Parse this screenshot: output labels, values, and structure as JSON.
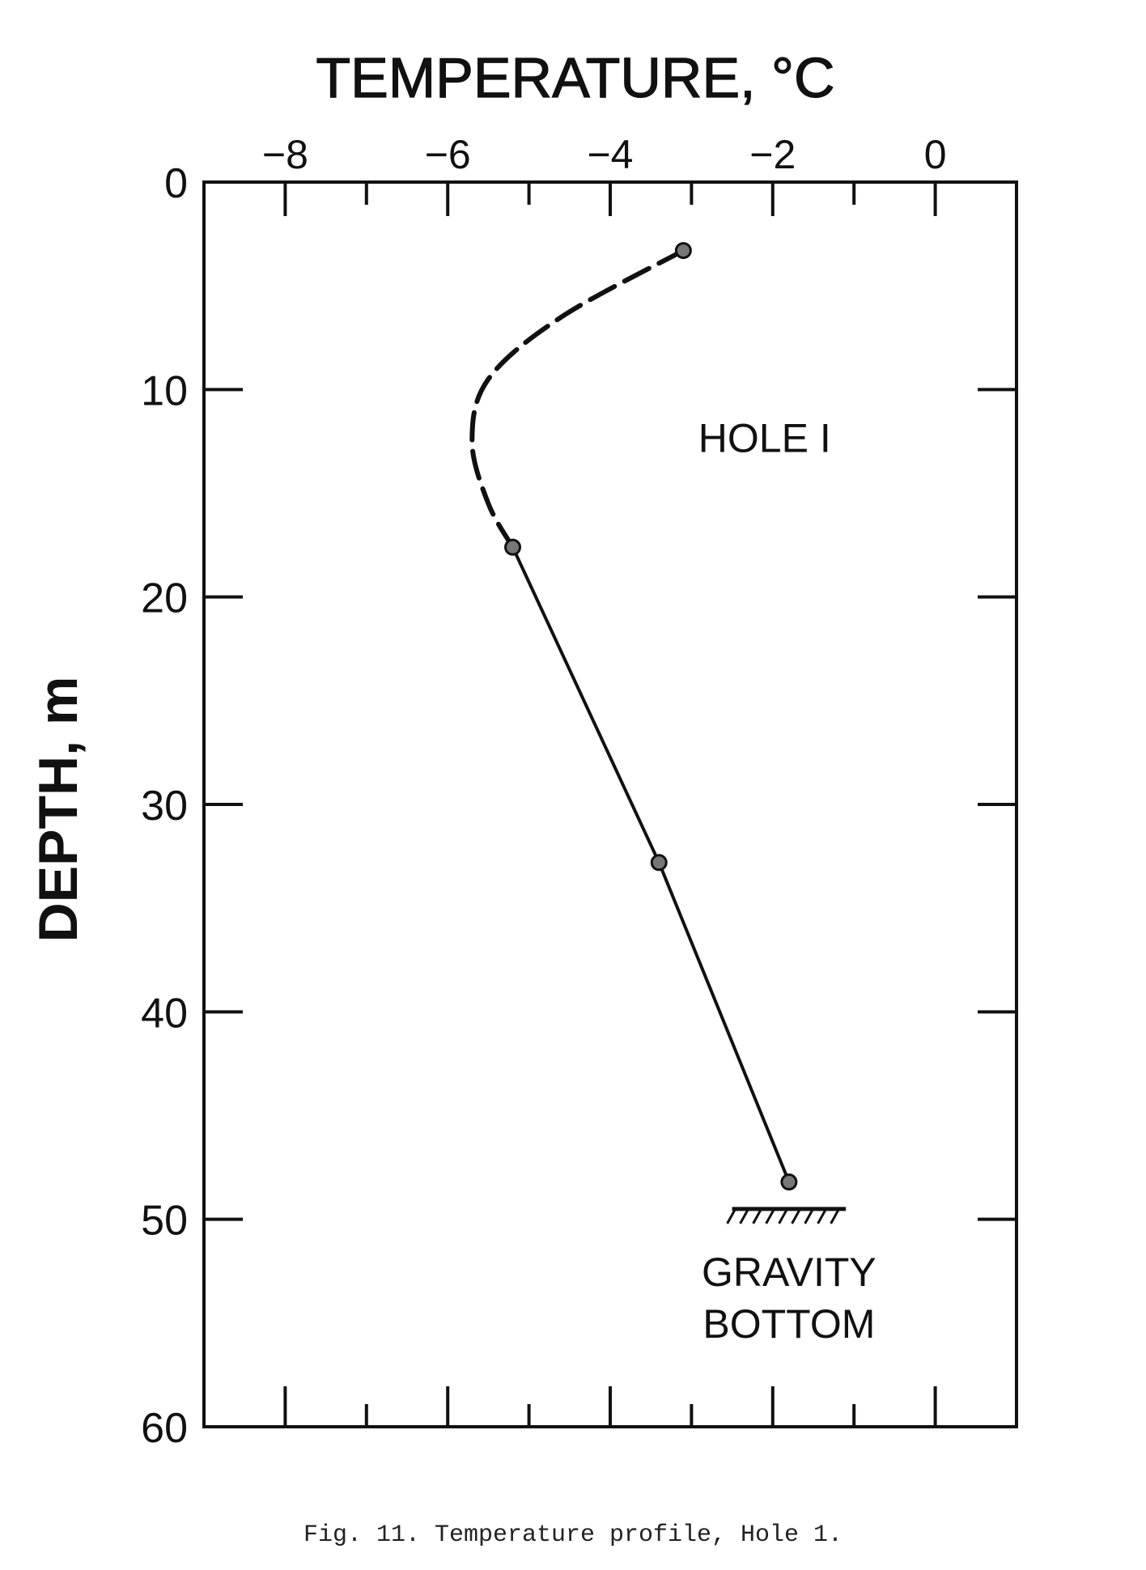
{
  "caption": "Fig. 11.  Temperature profile, Hole 1.",
  "chart_data": {
    "type": "line",
    "x_axis_label": "TEMPERATURE, °C",
    "y_axis_label": "DEPTH, m",
    "xlim": [
      -9,
      1
    ],
    "ylim": [
      0,
      60
    ],
    "y_inverted": true,
    "x_axis_position": "top",
    "x_ticks": [
      -8,
      -6,
      -4,
      -2,
      0
    ],
    "x_tick_labels": [
      "−8",
      "−6",
      "−4",
      "−2",
      "0"
    ],
    "y_ticks": [
      0,
      10,
      20,
      30,
      40,
      50,
      60
    ],
    "y_tick_labels": [
      "0",
      "10",
      "20",
      "30",
      "40",
      "50",
      "60"
    ],
    "grid": false,
    "measured_points": [
      {
        "temp": -3.1,
        "depth": 3.3
      },
      {
        "temp": -5.2,
        "depth": 17.6
      },
      {
        "temp": -3.4,
        "depth": 32.8
      },
      {
        "temp": -1.8,
        "depth": 48.2
      }
    ],
    "interpolated_curve_dashed": [
      {
        "temp": -3.1,
        "depth": 3.3
      },
      {
        "temp": -4.6,
        "depth": 6.5
      },
      {
        "temp": -5.5,
        "depth": 9.5
      },
      {
        "temp": -5.7,
        "depth": 12.5
      },
      {
        "temp": -5.5,
        "depth": 15.5
      },
      {
        "temp": -5.2,
        "depth": 17.6
      }
    ],
    "measured_curve_solid": [
      {
        "temp": -5.2,
        "depth": 17.6
      },
      {
        "temp": -3.4,
        "depth": 32.8
      },
      {
        "temp": -1.8,
        "depth": 48.2
      }
    ],
    "annotations": [
      {
        "text": "HOLE   I",
        "temp": -2.1,
        "depth": 12.3
      },
      {
        "text": "GRAVITY",
        "temp": -1.8,
        "depth": 52.5
      },
      {
        "text": "BOTTOM",
        "temp": -1.8,
        "depth": 55.0
      }
    ],
    "bottom_marker": {
      "temp_start": -2.5,
      "temp_end": -1.1,
      "depth": 49.5
    }
  }
}
